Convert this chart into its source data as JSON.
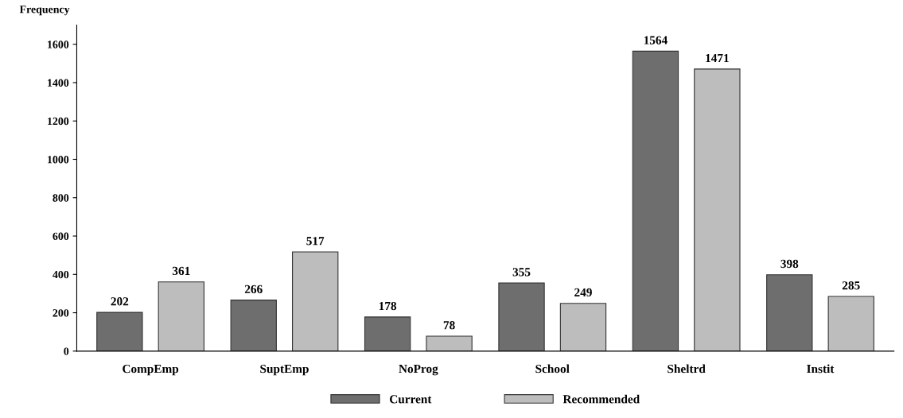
{
  "chart_data": {
    "type": "bar",
    "ylabel": "Frequency",
    "categories": [
      "CompEmp",
      "SuptEmp",
      "NoProg",
      "School",
      "Sheltrd",
      "Instit"
    ],
    "series": [
      {
        "name": "Current",
        "color": "#6e6e6e",
        "values": [
          202,
          266,
          178,
          355,
          1564,
          398
        ]
      },
      {
        "name": "Recommended",
        "color": "#bdbdbd",
        "values": [
          361,
          517,
          78,
          249,
          1471,
          285
        ]
      }
    ],
    "ylim": [
      0,
      1700
    ],
    "yticks": [
      0,
      200,
      400,
      600,
      800,
      1000,
      1200,
      1400,
      1600
    ],
    "data_labels": true,
    "legend": "bottom",
    "grid": false
  }
}
